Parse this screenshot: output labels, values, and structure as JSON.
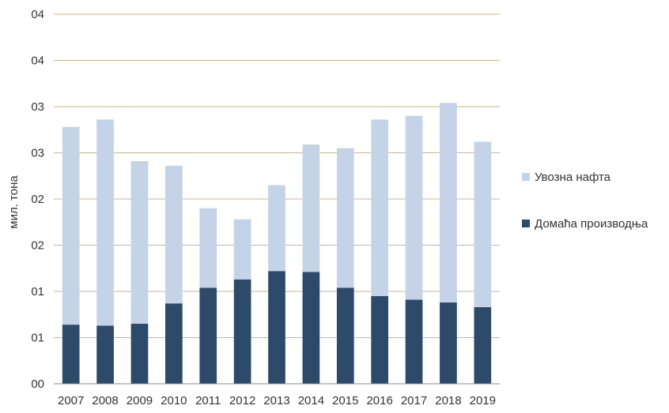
{
  "chart_data": {
    "type": "bar",
    "stacked": true,
    "ylabel": "мил. тона",
    "xlabel": "",
    "categories": [
      "2007",
      "2008",
      "2009",
      "2010",
      "2011",
      "2012",
      "2013",
      "2014",
      "2015",
      "2016",
      "2017",
      "2018",
      "2019"
    ],
    "ylim": [
      0,
      4.0
    ],
    "ytick_values": [
      0,
      0.5,
      1.0,
      1.5,
      2.0,
      2.5,
      3.0,
      3.5,
      4.0
    ],
    "ytick_labels": [
      "00",
      "01",
      "01",
      "02",
      "02",
      "03",
      "03",
      "04",
      "04"
    ],
    "grid": true,
    "legend_position": "right",
    "series": [
      {
        "name": "Домаћа производња",
        "color": "#2e4a6b",
        "values": [
          0.64,
          0.63,
          0.65,
          0.87,
          1.04,
          1.13,
          1.22,
          1.21,
          1.04,
          0.95,
          0.91,
          0.88,
          0.83
        ]
      },
      {
        "name": "Увозна нафта",
        "color": "#c4d3e8",
        "values": [
          2.14,
          2.23,
          1.76,
          1.49,
          0.86,
          0.65,
          0.93,
          1.38,
          1.51,
          1.91,
          1.99,
          2.16,
          1.79
        ]
      }
    ]
  }
}
